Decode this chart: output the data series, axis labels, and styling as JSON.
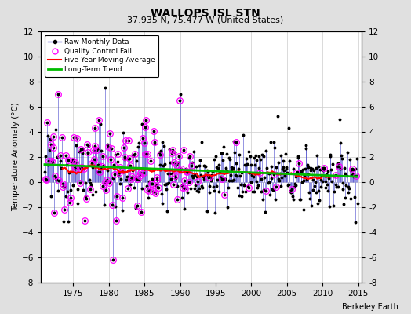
{
  "title": "WALLOPS ISL STN",
  "subtitle": "37.935 N, 75.477 W (United States)",
  "ylabel": "Temperature Anomaly (°C)",
  "credit": "Berkeley Earth",
  "xlim": [
    1970.5,
    2015.5
  ],
  "ylim": [
    -8,
    12
  ],
  "yticks": [
    -8,
    -6,
    -4,
    -2,
    0,
    2,
    4,
    6,
    8,
    10,
    12
  ],
  "xticks": [
    1975,
    1980,
    1985,
    1990,
    1995,
    2000,
    2005,
    2010,
    2015
  ],
  "bg_color": "#e0e0e0",
  "plot_bg_color": "#ffffff",
  "raw_line_color": "#4444cc",
  "raw_dot_color": "#000000",
  "ma_color": "#ff0000",
  "trend_color": "#00bb00",
  "qc_color": "#ff00ff",
  "grid_color": "#cccccc",
  "seed": 12345
}
